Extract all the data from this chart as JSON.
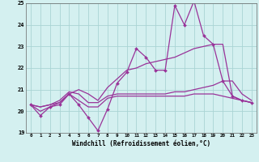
{
  "x": [
    0,
    1,
    2,
    3,
    4,
    5,
    6,
    7,
    8,
    9,
    10,
    11,
    12,
    13,
    14,
    15,
    16,
    17,
    18,
    19,
    20,
    21,
    22,
    23
  ],
  "line_spiky": [
    20.3,
    19.8,
    20.2,
    20.3,
    20.8,
    20.3,
    19.7,
    19.1,
    20.1,
    21.3,
    21.8,
    22.9,
    22.5,
    21.9,
    21.9,
    24.9,
    24.0,
    25.1,
    23.5,
    23.1,
    21.4,
    20.7,
    20.5,
    20.4
  ],
  "line_rising": [
    20.3,
    20.0,
    20.2,
    20.4,
    20.8,
    21.0,
    20.8,
    20.5,
    21.1,
    21.5,
    21.9,
    22.0,
    22.2,
    22.3,
    22.4,
    22.5,
    22.7,
    22.9,
    23.0,
    23.1,
    23.1,
    20.7,
    20.5,
    20.4
  ],
  "line_flat_upper": [
    20.3,
    20.2,
    20.3,
    20.5,
    20.9,
    20.8,
    20.4,
    20.4,
    20.7,
    20.8,
    20.8,
    20.8,
    20.8,
    20.8,
    20.8,
    20.9,
    20.9,
    21.0,
    21.1,
    21.2,
    21.4,
    21.4,
    20.8,
    20.5
  ],
  "line_flat_lower": [
    20.3,
    20.2,
    20.3,
    20.4,
    20.8,
    20.5,
    20.2,
    20.2,
    20.6,
    20.7,
    20.7,
    20.7,
    20.7,
    20.7,
    20.7,
    20.7,
    20.7,
    20.8,
    20.8,
    20.8,
    20.7,
    20.6,
    20.5,
    20.4
  ],
  "color": "#993399",
  "bg_color": "#d4f0f0",
  "grid_color": "#aad4d4",
  "xlabel": "Windchill (Refroidissement éolien,°C)",
  "ylim": [
    19,
    25
  ],
  "xlim": [
    -0.5,
    23.5
  ],
  "yticks": [
    19,
    20,
    21,
    22,
    23,
    24,
    25
  ],
  "xticks": [
    0,
    1,
    2,
    3,
    4,
    5,
    6,
    7,
    8,
    9,
    10,
    11,
    12,
    13,
    14,
    15,
    16,
    17,
    18,
    19,
    20,
    21,
    22,
    23
  ]
}
